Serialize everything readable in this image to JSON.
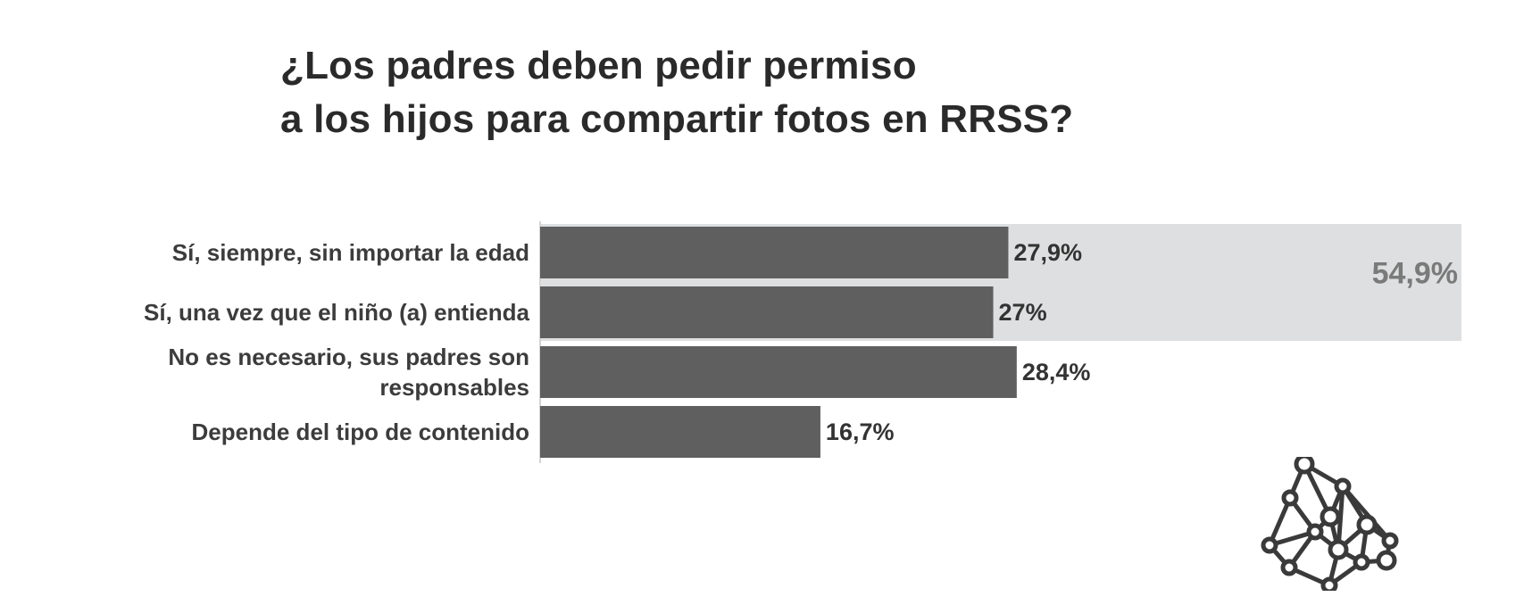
{
  "title": {
    "line1": "¿Los padres deben pedir permiso",
    "line2": "a los hijos para compartir fotos en RRSS?"
  },
  "colors": {
    "bar": "#5f5f60",
    "group_band": "#dedfe0",
    "axis": "#d4d4d4"
  },
  "logo": {
    "icon": "network-nodes-icon"
  },
  "chart_data": {
    "type": "bar",
    "orientation": "horizontal",
    "title": "¿Los padres deben pedir permiso a los hijos para compartir fotos en RRSS?",
    "xlabel": "",
    "ylabel": "",
    "xlim": [
      0,
      54.9
    ],
    "grid": false,
    "categories": [
      "Sí, siempre, sin importar la edad",
      "Sí, una vez que el niño (a) entienda",
      "No es necesario, sus padres son responsables",
      "Depende del tipo de contenido"
    ],
    "category_lines": [
      [
        "Sí, siempre, sin importar la edad"
      ],
      [
        "Sí, una vez que el niño (a) entienda"
      ],
      [
        "No es necesario, sus padres son",
        "responsables"
      ],
      [
        "Depende del tipo de contenido"
      ]
    ],
    "values": [
      27.9,
      27,
      28.4,
      16.7
    ],
    "value_labels": [
      "27,9%",
      "27%",
      "28,4%",
      "16,7%"
    ],
    "annotations": [
      {
        "type": "group-band",
        "categories": [
          0,
          1
        ],
        "value": 54.9,
        "label": "54,9%"
      }
    ]
  }
}
